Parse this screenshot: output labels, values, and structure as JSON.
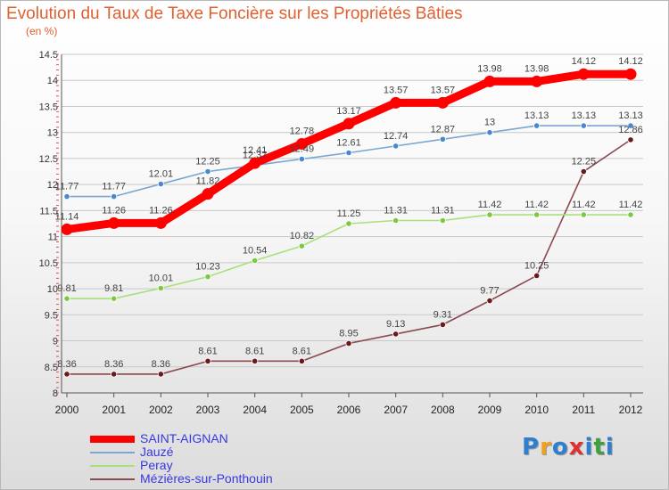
{
  "title": "Evolution du Taux de Taxe Foncière sur les Propriétés Bâties",
  "unit_label": "(en %)",
  "logo_text": "Proxiti",
  "colors": {
    "title": "#e06030",
    "legend_text": "#3838e0",
    "grid": "#c8c8c8",
    "axis": "#555555"
  },
  "chart_data": {
    "type": "line",
    "x": [
      "2000",
      "2001",
      "2002",
      "2003",
      "2004",
      "2005",
      "2006",
      "2007",
      "2008",
      "2009",
      "2010",
      "2011",
      "2012"
    ],
    "ylim": [
      8,
      14.5
    ],
    "yticks": [
      "8",
      "8.5",
      "9",
      "9.5",
      "10",
      "10.5",
      "11",
      "11.5",
      "12",
      "12.5",
      "13",
      "13.5",
      "14",
      "14.5"
    ],
    "grid": true,
    "legend_position": "bottom-left",
    "series": [
      {
        "name": "SAINT-AIGNAN",
        "color": "#ff0000",
        "values": [
          11.14,
          11.26,
          11.26,
          11.82,
          12.41,
          12.78,
          13.17,
          13.57,
          13.57,
          13.98,
          13.98,
          14.12,
          14.12
        ],
        "labels": [
          "11.14",
          "11.26",
          "11.26",
          "11.82",
          "12.41",
          "12.78",
          "13.17",
          "13.57",
          "13.57",
          "13.98",
          "13.98",
          "14.12",
          "14.12"
        ]
      },
      {
        "name": "Jauzé",
        "color": "#7aa6d0",
        "point_color": "#4a88cc",
        "values": [
          11.77,
          11.77,
          12.01,
          12.25,
          12.37,
          12.49,
          12.61,
          12.74,
          12.87,
          13,
          13.13,
          13.13,
          13.13
        ],
        "labels": [
          "11.77",
          "11.77",
          "12.01",
          "12.25",
          "12.37",
          "12.49",
          "12.61",
          "12.74",
          "12.87",
          "13",
          "13.13",
          "13.13",
          "13.13"
        ]
      },
      {
        "name": "Peray",
        "color": "#a8e07a",
        "point_color": "#7cc840",
        "values": [
          9.81,
          9.81,
          10.01,
          10.23,
          10.54,
          10.82,
          11.25,
          11.31,
          11.31,
          11.42,
          11.42,
          11.42,
          11.42
        ],
        "labels": [
          "9.81",
          "9.81",
          "10.01",
          "10.23",
          "10.54",
          "10.82",
          "11.25",
          "11.31",
          "11.31",
          "11.42",
          "11.42",
          "11.42",
          "11.42"
        ]
      },
      {
        "name": "Mézières-sur-Ponthouin",
        "color": "#8a4a50",
        "point_color": "#6a1a1a",
        "values": [
          8.36,
          8.36,
          8.36,
          8.61,
          8.61,
          8.61,
          8.95,
          9.13,
          9.31,
          9.77,
          10.25,
          12.25,
          12.86
        ],
        "labels": [
          "8.36",
          "8.36",
          "8.36",
          "8.61",
          "8.61",
          "8.61",
          "8.95",
          "9.13",
          "9.31",
          "9.77",
          "10.25",
          "12.25",
          "12.86"
        ]
      }
    ]
  }
}
